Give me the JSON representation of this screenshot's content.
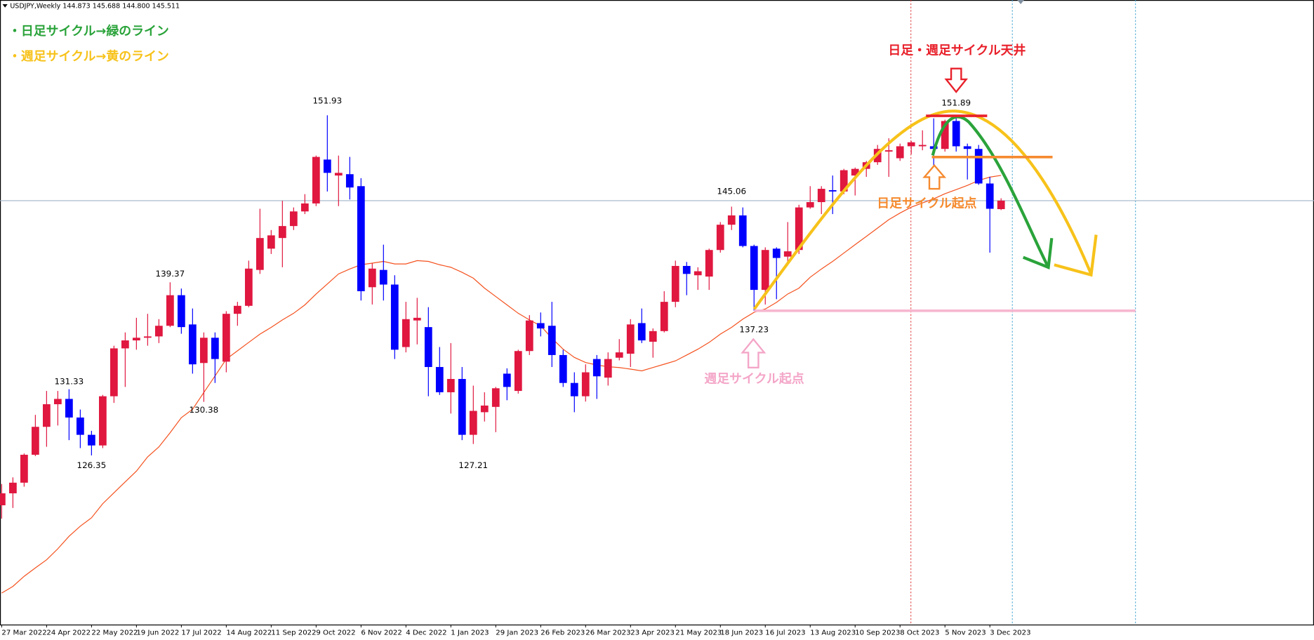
{
  "header": {
    "symbol": "USDJPY,Weekly",
    "ohlc": [
      "144.873",
      "145.688",
      "144.800",
      "145.511"
    ]
  },
  "notes": {
    "daily": "・日足サイクル→緑のライン",
    "weekly": "・週足サイクル→黄のライン",
    "top": "日足・週足サイクル天井",
    "daily_start": "日足サイクル起点",
    "weekly_start": "週足サイクル起点"
  },
  "chart_data": {
    "type": "candlestick",
    "categories": [
      "27 Mar 2022",
      null,
      null,
      null,
      "24 Apr 2022",
      null,
      null,
      null,
      "22 May 2022",
      null,
      null,
      null,
      "19 Jun 2022",
      null,
      null,
      null,
      "17 Jul 2022",
      null,
      null,
      null,
      "14 Aug 2022",
      null,
      null,
      null,
      "11 Sep 2022",
      null,
      null,
      null,
      "9 Oct 2022",
      null,
      null,
      null,
      "6 Nov 2022",
      null,
      null,
      null,
      "4 Dec 2022",
      null,
      null,
      null,
      "1 Jan 2023",
      null,
      null,
      null,
      "29 Jan 2023",
      null,
      null,
      null,
      "26 Feb 2023",
      null,
      null,
      null,
      "26 Mar 2023",
      null,
      null,
      null,
      "23 Apr 2023",
      null,
      null,
      null,
      "21 May 2023",
      null,
      null,
      null,
      "18 Jun 2023",
      null,
      null,
      null,
      "16 Jul 2023",
      null,
      null,
      null,
      "13 Aug 2023",
      null,
      null,
      null,
      "10 Sep 2023",
      null,
      null,
      null,
      "8 Oct 2023",
      null,
      null,
      null,
      "5 Nov 2023",
      null,
      null,
      null,
      "3 Dec 2023",
      null
    ],
    "open": [
      122.6,
      123.5,
      124.3,
      126.4,
      128.5,
      130.2,
      130.6,
      129.2,
      127.9,
      127.1,
      130.8,
      134.4,
      135.0,
      135.2,
      135.3,
      136.1,
      138.4,
      136.2,
      133.3,
      135.2,
      133.4,
      137.0,
      137.6,
      140.3,
      141.9,
      142.7,
      143.6,
      144.7,
      145.3,
      148.6,
      147.4,
      147.5,
      146.6,
      139.0,
      140.3,
      139.2,
      134.5,
      136.5,
      136.0,
      133.0,
      131.1,
      132.1,
      127.9,
      129.6,
      130.0,
      132.5,
      131.2,
      134.2,
      136.3,
      136.1,
      133.9,
      131.8,
      130.8,
      133.6,
      132.2,
      133.7,
      134.0,
      136.3,
      134.9,
      135.7,
      137.9,
      140.6,
      139.9,
      139.8,
      141.8,
      143.7,
      144.4,
      142.1,
      138.8,
      141.9,
      141.3,
      141.8,
      145.0,
      145.4,
      146.3,
      146.2,
      147.4,
      147.9,
      148.4,
      149.2,
      148.7,
      149.6,
      149.6,
      149.6,
      149.4,
      151.5,
      149.6,
      149.4,
      146.8,
      144.873
    ],
    "high": [
      124.2,
      124.7,
      126.5,
      129.4,
      131.2,
      131.2,
      131.33,
      129.8,
      128.2,
      130.9,
      134.6,
      135.6,
      136.7,
      137.0,
      136.6,
      139.37,
      138.9,
      137.4,
      135.6,
      135.6,
      137.2,
      137.9,
      141.0,
      144.9,
      143.3,
      145.5,
      145.0,
      146.0,
      148.9,
      151.93,
      148.9,
      148.8,
      147.2,
      140.8,
      142.2,
      139.9,
      137.9,
      138.2,
      137.5,
      134.5,
      134.8,
      133.0,
      131.6,
      131.1,
      131.5,
      132.9,
      134.3,
      136.9,
      137.1,
      137.9,
      134.3,
      132.6,
      133.2,
      133.9,
      134.1,
      135.1,
      136.6,
      137.4,
      135.9,
      138.7,
      141.0,
      140.9,
      140.5,
      141.9,
      143.9,
      145.06,
      145.0,
      142.2,
      142.0,
      142.0,
      143.9,
      145.2,
      146.6,
      146.6,
      147.4,
      147.9,
      148.0,
      148.5,
      149.7,
      150.2,
      149.8,
      150.0,
      150.8,
      151.7,
      151.6,
      151.89,
      149.8,
      149.7,
      147.3,
      145.688
    ],
    "low": [
      121.6,
      122.4,
      124.0,
      126.3,
      127.0,
      128.6,
      127.5,
      126.9,
      126.35,
      126.9,
      130.3,
      131.5,
      134.3,
      134.6,
      134.8,
      136.0,
      135.5,
      132.5,
      130.38,
      131.8,
      132.6,
      136.1,
      137.5,
      140.0,
      141.5,
      140.5,
      143.3,
      144.5,
      145.1,
      146.2,
      145.1,
      145.6,
      138.0,
      137.7,
      138.0,
      133.6,
      134.1,
      134.7,
      130.8,
      130.9,
      129.5,
      127.5,
      127.21,
      128.9,
      128.1,
      130.5,
      131.0,
      133.9,
      135.3,
      133.0,
      131.5,
      129.6,
      130.4,
      130.6,
      131.6,
      133.5,
      133.0,
      134.8,
      133.7,
      135.6,
      137.5,
      138.4,
      138.8,
      138.8,
      141.6,
      143.3,
      142.0,
      137.23,
      137.7,
      138.1,
      140.7,
      141.5,
      144.9,
      144.5,
      144.5,
      146.0,
      145.9,
      147.3,
      148.2,
      147.3,
      148.5,
      149.0,
      149.3,
      146.8,
      149.2,
      149.2,
      147.1,
      146.7,
      141.6,
      144.8
    ],
    "close": [
      123.5,
      124.3,
      126.4,
      128.5,
      130.2,
      130.6,
      129.2,
      127.9,
      127.1,
      130.8,
      134.4,
      135.0,
      135.2,
      135.3,
      136.1,
      138.4,
      136.0,
      133.2,
      135.2,
      133.6,
      137.0,
      137.6,
      140.4,
      142.7,
      142.9,
      143.6,
      144.7,
      145.3,
      148.8,
      147.6,
      147.6,
      146.5,
      138.7,
      140.4,
      139.2,
      134.3,
      136.6,
      136.7,
      133.0,
      131.1,
      132.1,
      127.9,
      129.7,
      130.1,
      131.4,
      131.5,
      134.2,
      136.5,
      135.9,
      133.9,
      131.8,
      130.8,
      132.6,
      132.3,
      133.6,
      134.1,
      136.2,
      135.0,
      135.7,
      137.9,
      140.6,
      140.0,
      140.2,
      141.8,
      143.7,
      144.4,
      142.1,
      138.8,
      141.8,
      141.2,
      141.7,
      145.0,
      145.4,
      146.4,
      146.2,
      147.8,
      147.9,
      148.4,
      149.4,
      149.3,
      149.6,
      149.9,
      149.7,
      149.4,
      151.5,
      149.6,
      149.4,
      146.8,
      144.9,
      145.511
    ],
    "up_color": "#e0173f",
    "down_color": "#0000ff",
    "ma": {
      "color": "#f4511e",
      "values": [
        116.0,
        116.5,
        117.26,
        117.89,
        118.5,
        119.33,
        120.27,
        121.03,
        121.66,
        122.72,
        123.54,
        124.36,
        125.17,
        126.24,
        126.99,
        128.06,
        129.19,
        129.82,
        131.08,
        132.33,
        133.59,
        134.22,
        134.85,
        135.47,
        135.98,
        136.54,
        137.04,
        137.67,
        138.49,
        139.24,
        140.0,
        140.37,
        140.69,
        140.81,
        140.94,
        140.75,
        140.75,
        141.0,
        140.94,
        140.69,
        140.5,
        140.12,
        139.68,
        138.93,
        138.3,
        137.67,
        137.04,
        136.54,
        136.1,
        135.16,
        134.34,
        133.72,
        133.34,
        133.15,
        133.02,
        132.96,
        132.84,
        132.71,
        132.96,
        133.21,
        133.46,
        133.9,
        134.34,
        134.85,
        135.47,
        135.98,
        136.6,
        137.11,
        137.36,
        137.86,
        138.49,
        138.93,
        139.75,
        140.37,
        140.94,
        141.57,
        142.2,
        142.82,
        143.45,
        144.08,
        144.58,
        145.02,
        145.34,
        145.65,
        146.03,
        146.34,
        146.66,
        147.03,
        147.28,
        147.41
      ]
    },
    "ylim": [
      113.6,
      160.6
    ]
  }
}
